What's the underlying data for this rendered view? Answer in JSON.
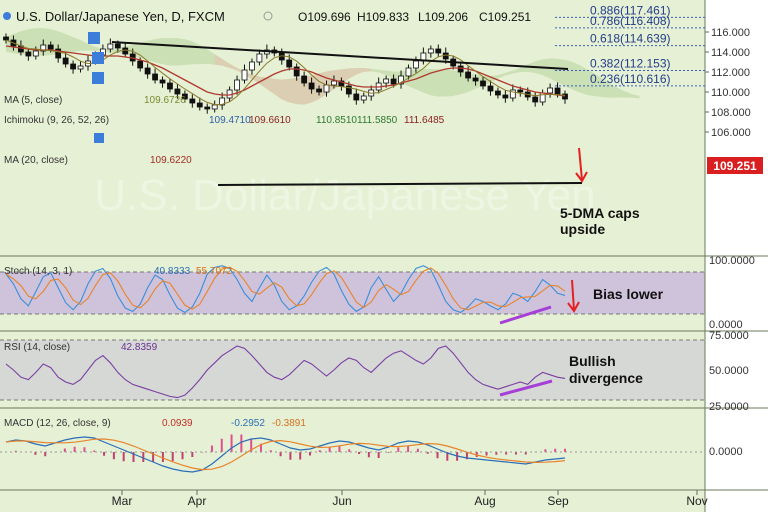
{
  "header": {
    "symbol": "U.S. Dollar/Japanese Yen, D, FXCM",
    "ohlc": [
      "O109.696",
      "H109.833",
      "L109.206",
      "C109.251"
    ]
  },
  "colors": {
    "background": "#e6f0d4",
    "axis_panel": "#ffffff",
    "cloud_bull": "#b5d49a",
    "cloud_bear": "#e6c2b0",
    "ma_red": "#b03a2e",
    "stoch_k": "#3a8fd9",
    "stoch_d": "#e8842b",
    "rsi": "#7a3fa3",
    "band": "#c7b3de",
    "annotation": "#a63ed8",
    "arrow": "#e52020",
    "price_badge": "#d91f1f"
  },
  "indicators": {
    "ma5": {
      "label": "MA (5, close)",
      "value": "109.6726"
    },
    "ichimoku": {
      "label": "Ichimoku (9, 26, 52, 26)",
      "values": [
        "109.4710",
        "109.6610",
        "110.8510",
        "111.5850",
        "111.6485"
      ]
    },
    "ma20": {
      "label": "MA (20, close)",
      "value": "109.6220"
    }
  },
  "fibonacci": [
    {
      "label": "0.886(117.461)",
      "price": 117.461
    },
    {
      "label": "0.786(116.408)",
      "price": 116.408
    },
    {
      "label": "0.618(114.639)",
      "price": 114.639
    },
    {
      "label": "0.382(112.153)",
      "price": 112.153
    },
    {
      "label": "0.236(110.616)",
      "price": 110.616
    }
  ],
  "annotations": {
    "main": "5-DMA caps\nupside",
    "stoch": "Bias lower",
    "rsi": "Bullish\ndivergence"
  },
  "current_price": "109.251",
  "stoch_panel": {
    "label": "Stoch (14, 3, 1)",
    "k_value": "40.8333",
    "d_value": "55.7072",
    "ticks": [
      "100.0000",
      "0.0000"
    ]
  },
  "rsi_panel": {
    "label": "RSI (14, close)",
    "value": "42.8359",
    "ticks": [
      "75.0000",
      "50.0000",
      "25.0000"
    ]
  },
  "macd_panel": {
    "label": "MACD (12, 26, close, 9)",
    "values": [
      "0.0939",
      "-0.2952",
      "-0.3891"
    ],
    "ticks": [
      "0.0000"
    ]
  },
  "chart_data": {
    "type": "line",
    "title": "U.S. Dollar/Japanese Yen, D, FXCM",
    "y_axis_ticks": [
      "116.000",
      "114.000",
      "112.000",
      "110.000",
      "108.000",
      "106.000"
    ],
    "ylim": [
      104.9,
      117.5
    ],
    "x_tick_labels": [
      "Mar",
      "Apr",
      "Jun",
      "Aug",
      "Sep",
      "Nov"
    ],
    "close_series": [
      115.2,
      114.6,
      114.0,
      113.6,
      114.1,
      114.7,
      114.3,
      113.4,
      112.8,
      112.3,
      112.6,
      113.1,
      113.7,
      114.3,
      114.8,
      114.4,
      113.8,
      113.1,
      112.4,
      111.8,
      111.2,
      110.9,
      110.3,
      109.8,
      109.3,
      108.9,
      108.5,
      108.3,
      108.7,
      109.4,
      110.2,
      111.2,
      112.2,
      113.0,
      113.8,
      114.2,
      113.9,
      113.2,
      112.5,
      111.6,
      110.9,
      110.3,
      110.0,
      110.7,
      111.1,
      110.6,
      109.8,
      109.2,
      109.6,
      110.2,
      110.9,
      111.3,
      110.8,
      111.6,
      112.4,
      113.1,
      113.9,
      114.3,
      113.9,
      113.3,
      112.6,
      112.0,
      111.4,
      111.1,
      110.6,
      110.1,
      109.7,
      109.4,
      110.2,
      110.0,
      109.5,
      109.0,
      109.9,
      110.4,
      109.8,
      109.3
    ],
    "ma20_series": [
      114.6,
      114.5,
      114.4,
      114.3,
      114.2,
      114.2,
      114.2,
      114.1,
      114.0,
      113.9,
      113.8,
      113.7,
      113.6,
      113.6,
      113.6,
      113.6,
      113.5,
      113.4,
      113.2,
      113.0,
      112.7,
      112.4,
      112.0,
      111.6,
      111.2,
      110.8,
      110.4,
      110.0,
      109.8,
      109.7,
      109.7,
      109.9,
      110.2,
      110.6,
      111.0,
      111.4,
      111.8,
      112.1,
      112.3,
      112.3,
      112.2,
      112.0,
      111.7,
      111.4,
      111.2,
      111.0,
      110.8,
      110.6,
      110.5,
      110.5,
      110.5,
      110.6,
      110.7,
      110.9,
      111.1,
      111.3,
      111.6,
      111.9,
      112.1,
      112.3,
      112.4,
      112.4,
      112.3,
      112.1,
      111.8,
      111.5,
      111.2,
      110.9,
      110.6,
      110.4,
      110.2,
      110.0,
      109.9,
      109.8,
      109.7,
      109.6
    ],
    "series": [
      {
        "name": "Stoch (14, 3, 1)",
        "values": [
          80,
          62,
          35,
          22,
          48,
          75,
          82,
          55,
          28,
          15,
          30,
          62,
          85,
          90,
          72,
          40,
          18,
          12,
          25,
          55,
          78,
          70,
          42,
          18,
          10,
          20,
          45,
          80,
          92,
          95,
          90,
          70,
          45,
          30,
          55,
          78,
          60,
          30,
          15,
          22,
          40,
          65,
          85,
          92,
          80,
          50,
          25,
          12,
          20,
          55,
          75,
          52,
          30,
          45,
          70,
          90,
          95,
          88,
          60,
          30,
          15,
          10,
          20,
          35,
          30,
          22,
          15,
          25,
          45,
          40,
          30,
          48,
          70,
          60,
          45,
          41
        ]
      },
      {
        "name": "RSI (14, close)",
        "values": [
          55,
          50,
          44,
          42,
          48,
          55,
          52,
          44,
          40,
          38,
          42,
          50,
          58,
          62,
          56,
          48,
          42,
          38,
          36,
          34,
          32,
          30,
          28,
          27,
          29,
          35,
          42,
          50,
          56,
          62,
          66,
          70,
          68,
          62,
          55,
          48,
          44,
          42,
          46,
          52,
          58,
          55,
          50,
          45,
          50,
          56,
          60,
          58,
          52,
          48,
          54,
          60,
          64,
          66,
          62,
          58,
          55,
          60,
          68,
          70,
          64,
          56,
          48,
          42,
          38,
          36,
          34,
          36,
          38,
          40,
          38,
          44,
          48,
          46,
          44,
          43
        ]
      },
      {
        "name": "MACD (12, 26, close, 9)",
        "values": [
          0.5,
          0.6,
          0.55,
          0.4,
          0.3,
          0.45,
          0.6,
          0.7,
          0.75,
          0.7,
          0.5,
          0.3,
          0.1,
          -0.1,
          -0.3,
          -0.5,
          -0.7,
          -0.85,
          -0.95,
          -1.0,
          -0.9,
          -0.6,
          -0.2,
          0.2,
          0.5,
          0.65,
          0.7,
          0.6,
          0.4,
          0.2,
          0.1,
          0.15,
          0.3,
          0.45,
          0.55,
          0.5,
          0.35,
          0.2,
          0.1,
          0.25,
          0.45,
          0.55,
          0.5,
          0.35,
          0.15,
          -0.05,
          -0.2,
          -0.3,
          -0.35,
          -0.4,
          -0.45,
          -0.5,
          -0.55,
          -0.6,
          -0.5,
          -0.4,
          -0.35,
          -0.3
        ]
      }
    ]
  }
}
